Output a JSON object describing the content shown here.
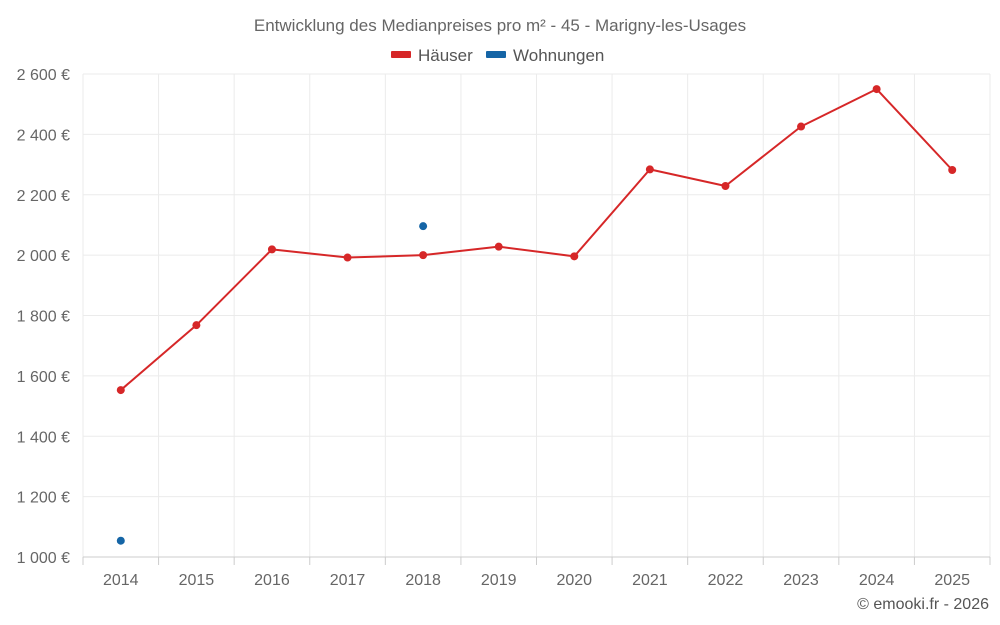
{
  "chart_data": {
    "type": "line",
    "title": "Entwicklung des Medianpreises pro m² - 45 - Marigny-les-Usages",
    "categories": [
      "2014",
      "2015",
      "2016",
      "2017",
      "2018",
      "2019",
      "2020",
      "2021",
      "2022",
      "2023",
      "2024",
      "2025"
    ],
    "series": [
      {
        "name": "Häuser",
        "color": "#d62728",
        "values": [
          1553,
          1768,
          2019,
          1992,
          2000,
          2028,
          1996,
          2284,
          2229,
          2426,
          2550,
          2282
        ]
      },
      {
        "name": "Wohnungen",
        "color": "#1565a6",
        "values": [
          1054,
          null,
          null,
          null,
          2096,
          null,
          null,
          null,
          null,
          null,
          null,
          null
        ]
      }
    ],
    "ylim": [
      1000,
      2600
    ],
    "yticks": [
      1000,
      1200,
      1400,
      1600,
      1800,
      2000,
      2200,
      2400,
      2600
    ],
    "ytick_labels": [
      "1 000 €",
      "1 200 €",
      "1 400 €",
      "1 600 €",
      "1 800 €",
      "2 000 €",
      "2 200 €",
      "2 400 €",
      "2 600 €"
    ],
    "xlabel": "",
    "ylabel": "",
    "legend_position": "top-center",
    "grid": true
  },
  "credit": "© emooki.fr - 2026"
}
